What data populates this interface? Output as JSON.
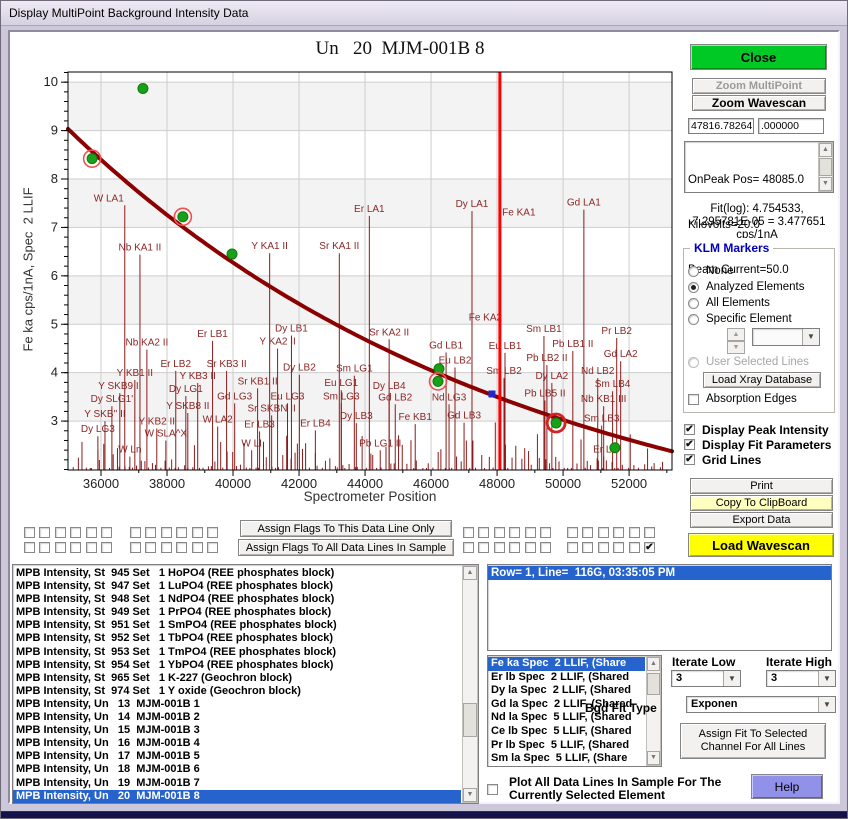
{
  "window_title": "Display MultiPoint Background Intensity Data",
  "chart_data": {
    "type": "scatter",
    "title": "Un   20  MJM-001B 8",
    "xlabel": "Spectrometer Position",
    "ylabel": "Fe ka cps/1nA, Spec  2 LLIF",
    "xlim": [
      35000,
      53300
    ],
    "ylim": [
      1.99,
      10.21
    ],
    "xticks": [
      36000,
      38000,
      40000,
      42000,
      44000,
      46000,
      48000,
      50000,
      52000
    ],
    "yticks": [
      3,
      4,
      5,
      6,
      7,
      8,
      9,
      10
    ],
    "grid": true,
    "bands": [
      [
        3,
        4
      ],
      [
        5,
        6
      ],
      [
        7,
        8
      ],
      [
        9,
        10
      ]
    ],
    "fit": {
      "log_intercept": 4.754533,
      "log_slope": -7.295781e-05,
      "value_at_peak": 3.477651
    },
    "on_peak_position": 48085.0,
    "bgd_marker": {
      "x": 47846,
      "y": 3.56
    },
    "points": [
      {
        "x": 35730,
        "y": 8.42,
        "ring": "small"
      },
      {
        "x": 37270,
        "y": 9.87,
        "ring": ""
      },
      {
        "x": 38480,
        "y": 7.22,
        "ring": "small"
      },
      {
        "x": 39970,
        "y": 6.45,
        "ring": ""
      },
      {
        "x": 46240,
        "y": 4.08,
        "ring": ""
      },
      {
        "x": 46210,
        "y": 3.82,
        "ring": "small"
      },
      {
        "x": 49790,
        "y": 2.96,
        "ring": "selected"
      },
      {
        "x": 51570,
        "y": 2.45,
        "ring": ""
      }
    ],
    "klm_markers": [
      {
        "label": "W LA1",
        "x": 36720,
        "y": 7.54,
        "dx": -16
      },
      {
        "label": "Nb KA1 II",
        "x": 37180,
        "y": 6.52
      },
      {
        "label": "Y KA1 II",
        "x": 41110,
        "y": 6.55
      },
      {
        "label": "Sr KA1 II",
        "x": 43220,
        "y": 6.55
      },
      {
        "label": "Er LA1",
        "x": 44130,
        "y": 7.32
      },
      {
        "label": "Dy LA1",
        "x": 47240,
        "y": 7.42
      },
      {
        "label": "Fe KA1",
        "x": 48660,
        "y": 7.25,
        "noline": true
      },
      {
        "label": "Gd LA1",
        "x": 50630,
        "y": 7.45
      },
      {
        "label": "Nb KA2 II",
        "x": 37390,
        "y": 4.56
      },
      {
        "label": "Er LB1",
        "x": 39380,
        "y": 4.74
      },
      {
        "label": "Dy LB1",
        "x": 41770,
        "y": 4.85
      },
      {
        "label": "Y KA2 II",
        "x": 41350,
        "y": 4.58
      },
      {
        "label": "Sr KA2 II",
        "x": 44730,
        "y": 4.77
      },
      {
        "label": "Er LB2",
        "x": 38265,
        "y": 4.12
      },
      {
        "label": "Sr KB3 II",
        "x": 39805,
        "y": 4.12
      },
      {
        "label": "Y KB1 II",
        "x": 37025,
        "y": 3.93
      },
      {
        "label": "Y KB3 II",
        "x": 38930,
        "y": 3.87
      },
      {
        "label": "Sr KB1 II",
        "x": 40745,
        "y": 3.76
      },
      {
        "label": "Y SKB9 II",
        "x": 36570,
        "y": 3.66
      },
      {
        "label": "Dy LG1",
        "x": 38570,
        "y": 3.6
      },
      {
        "label": "Gd LG3",
        "x": 40050,
        "y": 3.45
      },
      {
        "label": "Dy SLG1'",
        "x": 36330,
        "y": 3.39
      },
      {
        "label": "Y SKB8 II",
        "x": 38630,
        "y": 3.25
      },
      {
        "label": "Sr SKBN II",
        "x": 41170,
        "y": 3.2
      },
      {
        "label": "Y SKB'' II",
        "x": 36120,
        "y": 3.08
      },
      {
        "label": "Y KB2 II",
        "x": 37690,
        "y": 2.93
      },
      {
        "label": "W LA2",
        "x": 39535,
        "y": 2.97
      },
      {
        "label": "Er LB3",
        "x": 40805,
        "y": 2.87
      },
      {
        "label": "Dy LG3",
        "x": 35905,
        "y": 2.77
      },
      {
        "label": "W SLA^X",
        "x": 37965,
        "y": 2.68
      },
      {
        "label": "W LI",
        "x": 40565,
        "y": 2.48
      },
      {
        "label": "W Ln",
        "x": 36875,
        "y": 2.35
      },
      {
        "label": "Gd LB1",
        "x": 46455,
        "y": 4.5
      },
      {
        "label": "Dy LB2",
        "x": 42010,
        "y": 4.04
      },
      {
        "label": "Sm LG1",
        "x": 43675,
        "y": 4.02
      },
      {
        "label": "Eu LB2",
        "x": 46725,
        "y": 4.19
      },
      {
        "label": "Eu LG1",
        "x": 43280,
        "y": 3.72
      },
      {
        "label": "Dy LB4",
        "x": 44730,
        "y": 3.66
      },
      {
        "label": "Eu LG3",
        "x": 41650,
        "y": 3.45
      },
      {
        "label": "Sm LG3",
        "x": 43280,
        "y": 3.45
      },
      {
        "label": "Gd LB2",
        "x": 44915,
        "y": 3.43
      },
      {
        "label": "Nd LG3",
        "x": 46545,
        "y": 3.43
      },
      {
        "label": "Dy LB3",
        "x": 43735,
        "y": 3.04
      },
      {
        "label": "Fe KB1",
        "x": 45520,
        "y": 3.02
      },
      {
        "label": "Er LB4",
        "x": 42495,
        "y": 2.89
      },
      {
        "label": "Pb LG1 II",
        "x": 44460,
        "y": 2.48
      },
      {
        "label": "Fe KA2",
        "x": 47950,
        "y": 5.08,
        "noline": true,
        "dx": -10
      },
      {
        "label": "Sm LB1",
        "x": 49420,
        "y": 4.84
      },
      {
        "label": "Pr LB2",
        "x": 51625,
        "y": 4.8
      },
      {
        "label": "Eu LB1",
        "x": 48240,
        "y": 4.49
      },
      {
        "label": "Pb LB1 II",
        "x": 50295,
        "y": 4.53
      },
      {
        "label": "Gd LA2",
        "x": 51745,
        "y": 4.32
      },
      {
        "label": "Pb LB2 II",
        "x": 49510,
        "y": 4.24
      },
      {
        "label": "Sm LB2",
        "x": 48210,
        "y": 3.97
      },
      {
        "label": "Dy LA2",
        "x": 49660,
        "y": 3.87
      },
      {
        "label": "Nd LB2",
        "x": 51050,
        "y": 3.97
      },
      {
        "label": "Sm LB4",
        "x": 51500,
        "y": 3.7
      },
      {
        "label": "Pb LB5 II",
        "x": 49450,
        "y": 3.51
      },
      {
        "label": "Nb KB1 III",
        "x": 51230,
        "y": 3.39
      },
      {
        "label": "Gd LB3",
        "x": 47000,
        "y": 3.05
      },
      {
        "label": "Sm LB3",
        "x": 51170,
        "y": 2.99
      },
      {
        "label": "Er LI",
        "x": 51230,
        "y": 2.35
      }
    ],
    "colors": {
      "curve": "#8b0000",
      "marker_line": "#8b1a1a",
      "label": "#8b2626",
      "point": "#18a018",
      "ring": "#f25050",
      "selected_ring": "#d42222",
      "position_line": "#ff0000",
      "band": "#f3f3f3",
      "grid": "#cdcdcd",
      "bgd_marker": "#2228c8"
    }
  },
  "right_panel": {
    "close": "Close",
    "zoom_multipoint": "Zoom MultiPoint",
    "zoom_wavescan": "Zoom Wavescan",
    "position_field": "47816.78264",
    "offset_field": ".000000",
    "info_lines": [
      "OnPeak Pos= 48085.0",
      "Kilovolts=20.0",
      "Beam Current=50.0"
    ],
    "fit_lines": [
      "Fit(log): 4.754533,",
      "-7.295781E-05 = 3.477651",
      "cps/1nA"
    ],
    "klm": {
      "title": "KLM Markers",
      "options": [
        "None",
        "Analyzed Elements",
        "All Elements",
        "Specific Element"
      ],
      "selected": "Analyzed Elements",
      "user_selected_lines": "User Selected Lines",
      "load_xray": "Load Xray Database",
      "absorption_edges": "Absorption Edges"
    },
    "display_checks": [
      "Display Peak Intensity",
      "Display Fit Parameters",
      "Grid Lines"
    ],
    "print": "Print",
    "copy": "Copy To ClipBoard",
    "export": "Export Data",
    "load_wavescan": "Load Wavescan"
  },
  "flags_bar": {
    "assign_this": "Assign Flags To This Data Line Only",
    "assign_all": "Assign Flags To All Data Lines In Sample",
    "grid": {
      "rows": 2,
      "cols": 24,
      "checked": [
        {
          "row": 1,
          "col": 23
        }
      ]
    }
  },
  "sample_list": {
    "items": [
      "MPB Intensity, St  945 Set   1 HoPO4 (REE phosphates block)",
      "MPB Intensity, St  947 Set   1 LuPO4 (REE phosphates block)",
      "MPB Intensity, St  948 Set   1 NdPO4 (REE phosphates block)",
      "MPB Intensity, St  949 Set   1 PrPO4 (REE phosphates block)",
      "MPB Intensity, St  951 Set   1 SmPO4 (REE phosphates block)",
      "MPB Intensity, St  952 Set   1 TbPO4 (REE phosphates block)",
      "MPB Intensity, St  953 Set   1 TmPO4 (REE phosphates block)",
      "MPB Intensity, St  954 Set   1 YbPO4 (REE phosphates block)",
      "MPB Intensity, St  965 Set   1 K-227 (Geochron block)",
      "MPB Intensity, St  974 Set   1 Y oxide (Geochron block)",
      "MPB Intensity, Un   13  MJM-001B 1",
      "MPB Intensity, Un   14  MJM-001B 2",
      "MPB Intensity, Un   15  MJM-001B 3",
      "MPB Intensity, Un   16  MJM-001B 4",
      "MPB Intensity, Un   17  MJM-001B 5",
      "MPB Intensity, Un   18  MJM-001B 6",
      "MPB Intensity, Un   19  MJM-001B 7",
      "MPB Intensity, Un   20  MJM-001B 8"
    ],
    "selected_index": 17
  },
  "row_info": {
    "line1": "Row= 1, Line=  116G, 03:35:05 PM"
  },
  "element_list": {
    "items": [
      "Fe ka Spec  2 LLIF, (Share",
      "Er lb Spec  2 LLIF, (Shared",
      "Dy la Spec  2 LLIF, (Shared",
      "Gd la Spec  2 LLIF, (Shared",
      "Nd la Spec  5 LLIF, (Shared",
      "Ce lb Spec  5 LLIF, (Shared",
      "Pr lb Spec  5 LLIF, (Shared",
      "Sm la Spec  5 LLIF, (Share"
    ],
    "selected_index": 0
  },
  "fit_controls": {
    "iterate_low_label": "Iterate Low",
    "iterate_low_value": "3",
    "iterate_high_label": "Iterate High",
    "iterate_high_value": "3",
    "bgd_fit_label": "Bgd Fit Type",
    "bgd_fit_value": "Exponen",
    "assign_fit": "Assign Fit To Selected Channel For All Lines"
  },
  "footer": {
    "plot_all_label": "Plot All Data Lines In Sample For The Currently Selected Element",
    "help": "Help"
  }
}
